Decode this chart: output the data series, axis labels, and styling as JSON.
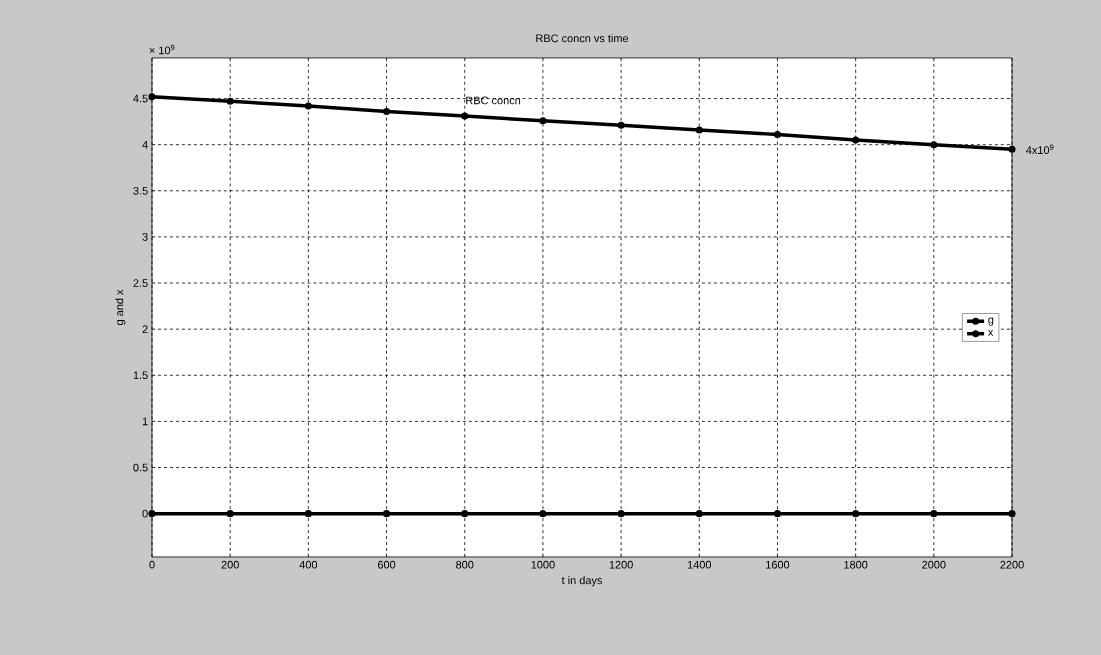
{
  "chart_data": {
    "type": "line",
    "title": "RBC concn vs time",
    "xlabel": "t in days",
    "ylabel": "g and x",
    "x": [
      0,
      200,
      400,
      600,
      800,
      1000,
      1200,
      1400,
      1600,
      1800,
      2000,
      2200
    ],
    "series": [
      {
        "name": "g",
        "color": "#000000",
        "values": [
          4.52,
          4.47,
          4.42,
          4.36,
          4.31,
          4.26,
          4.21,
          4.16,
          4.11,
          4.05,
          4.0,
          3.95
        ]
      },
      {
        "name": "x",
        "color": "#000000",
        "values": [
          0,
          0,
          0,
          0,
          0,
          0,
          0,
          0,
          0,
          0,
          0,
          0
        ]
      }
    ],
    "xlim": [
      0,
      2200
    ],
    "ylim": [
      -0.47,
      4.94
    ],
    "xticks": [
      0,
      200,
      400,
      600,
      800,
      1000,
      1200,
      1400,
      1600,
      1800,
      2000,
      2200
    ],
    "yticks": [
      0,
      0.5,
      1,
      1.5,
      2,
      2.5,
      3,
      3.5,
      4,
      4.5
    ],
    "annotations": [
      "× 10$^{9}$",
      "RBC concn",
      {
        "text": "4x10$^{9}$",
        "x": 2200,
        "y": 3.95
      }
    ],
    "grid": true,
    "legend": "right",
    "marker": "circle",
    "line_style": "solid"
  }
}
